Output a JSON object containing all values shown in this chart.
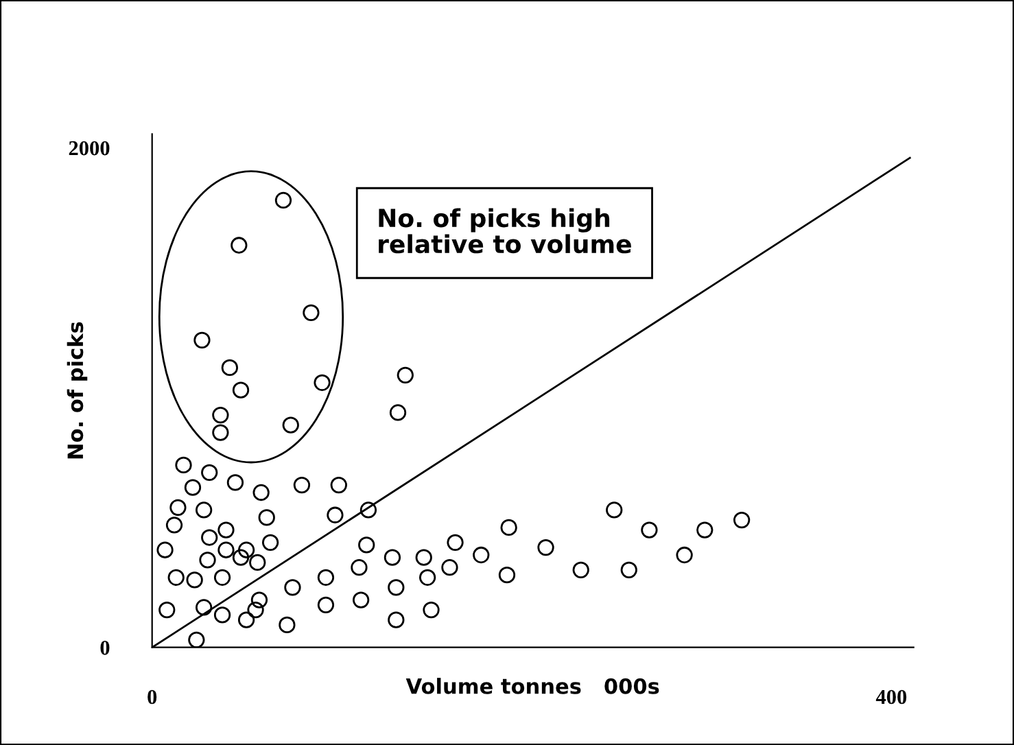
{
  "chart_data": {
    "type": "scatter",
    "xlabel": "Volume tonnes   000s",
    "ylabel": "No. of picks",
    "annotations": [
      "No. of picks high\nrelative to volume"
    ],
    "xlim": [
      0,
      412
    ],
    "ylim": [
      0,
      2055
    ],
    "xticks": [
      0,
      400
    ],
    "yticks": [
      0,
      2000
    ],
    "grid": false,
    "legend": false,
    "marker": "circle",
    "series": [
      {
        "color": "#000000",
        "x": [
          71,
          47,
          86,
          27,
          42,
          48,
          92,
          37,
          37,
          75,
          137,
          133,
          17,
          31,
          45,
          59,
          81,
          101,
          22,
          14,
          28,
          62,
          99,
          117,
          12,
          40,
          31,
          64,
          7,
          40,
          51,
          30,
          48,
          57,
          116,
          130,
          147,
          13,
          23,
          38,
          94,
          112,
          149,
          76,
          132,
          8,
          28,
          58,
          56,
          38,
          51,
          94,
          113,
          151,
          73,
          132,
          24,
          250,
          319,
          193,
          269,
          299,
          164,
          178,
          213,
          288,
          161,
          192,
          232,
          258
        ],
        "values": [
          1790,
          1610,
          1340,
          1230,
          1120,
          1030,
          1060,
          930,
          860,
          890,
          1090,
          940,
          730,
          700,
          660,
          620,
          650,
          650,
          640,
          560,
          550,
          520,
          530,
          550,
          490,
          470,
          440,
          420,
          390,
          390,
          390,
          350,
          360,
          340,
          410,
          360,
          360,
          280,
          270,
          280,
          280,
          320,
          280,
          240,
          240,
          150,
          160,
          190,
          150,
          130,
          110,
          170,
          190,
          150,
          90,
          110,
          30,
          550,
          510,
          480,
          470,
          470,
          420,
          370,
          400,
          370,
          320,
          290,
          310,
          310
        ]
      },
      {
        "type": "line",
        "color": "#000000",
        "marker": "none",
        "line_style": "solid",
        "x": [
          0,
          410
        ],
        "values": [
          0,
          1960
        ]
      }
    ]
  }
}
